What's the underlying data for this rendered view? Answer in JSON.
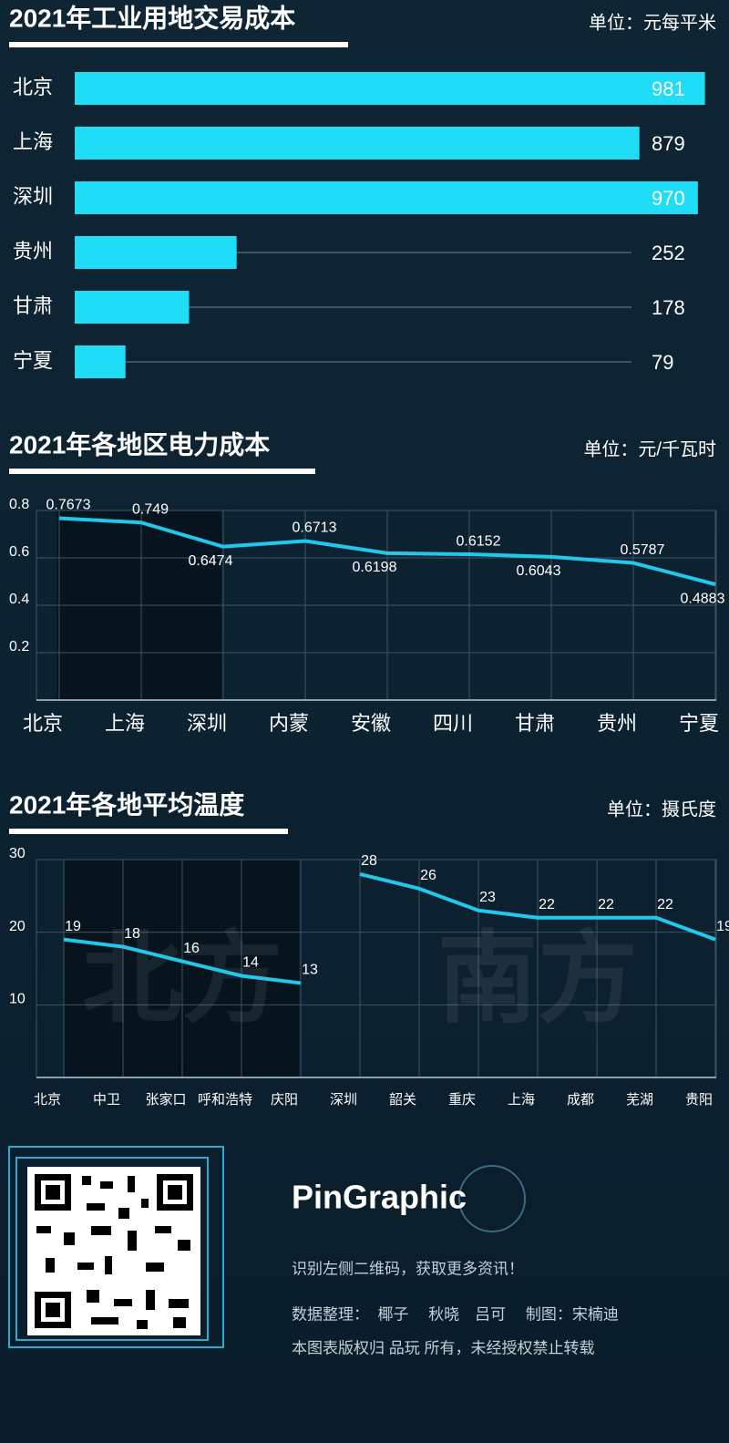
{
  "chart_data": [
    {
      "type": "hbar",
      "title": "2021年工业用地交易成本",
      "unit": "单位：元每平米",
      "categories": [
        "北京",
        "上海",
        "深圳",
        "贵州",
        "甘肃",
        "宁夏"
      ],
      "values": [
        981,
        879,
        970,
        252,
        178,
        79
      ],
      "color": "#1fdcf7",
      "xlim": [
        0,
        1000
      ]
    },
    {
      "type": "line",
      "title": "2021年各地区电力成本",
      "unit": "单位：元/千瓦时",
      "categories": [
        "北京",
        "上海",
        "深圳",
        "内蒙",
        "安徽",
        "四川",
        "甘肃",
        "贵州",
        "宁夏"
      ],
      "values": [
        0.7673,
        0.749,
        0.6474,
        0.6713,
        0.6198,
        0.6152,
        0.6043,
        0.5787,
        0.4883
      ],
      "color": "#22c8ea",
      "ylim": [
        0,
        0.8
      ],
      "yticks": [
        0.2,
        0.4,
        0.6,
        0.8
      ],
      "grid": true
    },
    {
      "type": "line",
      "title": "2021年各地平均温度",
      "unit": "单位：摄氏度",
      "categories": [
        "北京",
        "中卫",
        "张家口",
        "呼和浩特",
        "庆阳",
        "深圳",
        "韶关",
        "重庆",
        "上海",
        "成都",
        "芜湖",
        "贵阳"
      ],
      "series": [
        {
          "name": "北方",
          "color": "#22c8ea",
          "values": [
            19,
            18,
            16,
            14,
            13,
            null,
            null,
            null,
            null,
            null,
            null,
            null
          ]
        },
        {
          "name": "南方",
          "color": "#22c8ea",
          "values": [
            null,
            null,
            null,
            null,
            null,
            28,
            26,
            23,
            22,
            22,
            22,
            19
          ]
        }
      ],
      "ylim": [
        0,
        30
      ],
      "yticks": [
        10,
        20,
        30
      ],
      "grid": true
    }
  ],
  "footer": {
    "brand": "PinGraphic",
    "lines": [
      "识别左侧二维码，获取更多资讯！",
      "数据整理：  椰子　 秋晓　吕可　 制图：宋楠迪",
      "本图表版权归 品玩 所有，未经授权禁止转载"
    ]
  }
}
